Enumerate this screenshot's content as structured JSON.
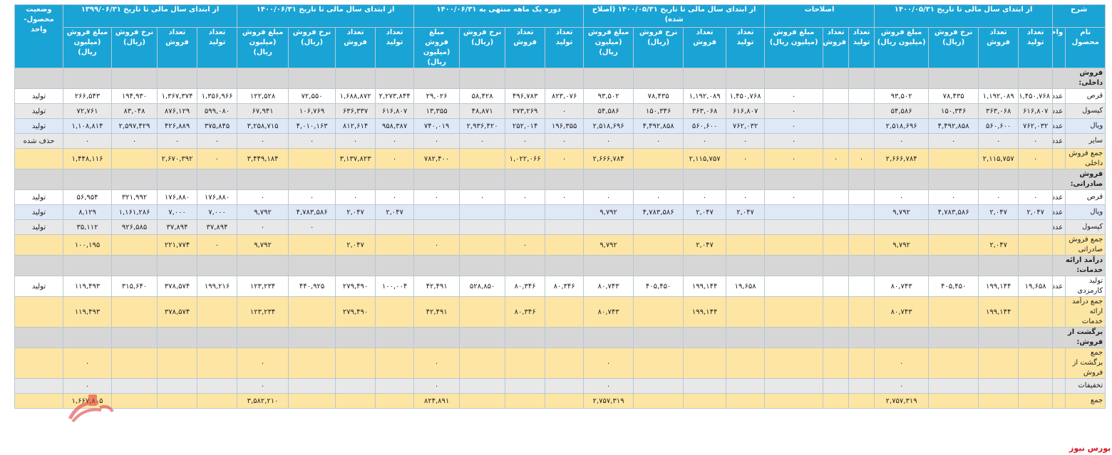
{
  "header": {
    "row1": [
      "شرح",
      "از ابتدای سال مالی تا تاریخ ۱۴۰۰/۰۵/۳۱",
      "اصلاحات",
      "از ابتدای سال مالی تا تاریخ ۱۴۰۰/۰۵/۳۱ (اصلاح شده)",
      "دوره یک ماهه منتهی به ۱۴۰۰/۰۶/۳۱",
      "از ابتدای سال مالی تا تاریخ ۱۴۰۰/۰۶/۳۱",
      "از ابتدای سال مالی تا تاریخ ۱۳۹۹/۰۶/۳۱",
      "وضعیت محصول- واحد"
    ],
    "row2": [
      "نام محصول",
      "واحد",
      "تعداد تولید",
      "تعداد فروش",
      "نرخ فروش (ریال)",
      "مبلغ فروش (میلیون ریال)",
      "تعداد تولید",
      "تعداد فروش",
      "مبلغ فروش (میلیون ریال)",
      "تعداد تولید",
      "تعداد فروش",
      "نرخ فروش (ریال)",
      "مبلغ فروش (میلیون ریال)",
      "تعداد تولید",
      "تعداد فروش",
      "نرخ فروش (ریال)",
      "مبلغ فروش (میلیون ریال)",
      "تعداد تولید",
      "تعداد فروش",
      "نرخ فروش (ریال)",
      "مبلغ فروش (میلیون ریال)",
      "تعداد تولید",
      "تعداد فروش",
      "نرخ فروش (ریال)",
      "مبلغ فروش (میلیون ریال)"
    ]
  },
  "rows": [
    {
      "type": "section",
      "label": "فروش داخلی:"
    },
    {
      "type": "data",
      "bg": "white",
      "label": "قرص",
      "unit": "عدد",
      "cells": [
        "۱,۴۵۰,۷۶۸",
        "۱,۱۹۲,۰۸۹",
        "۷۸,۴۳۵",
        "۹۳,۵۰۲",
        "",
        "",
        "۰",
        "۱,۴۵۰,۷۶۸",
        "۱,۱۹۲,۰۸۹",
        "۷۸,۴۳۵",
        "۹۳,۵۰۲",
        "۸۲۳,۰۷۶",
        "۴۹۶,۷۸۳",
        "۵۸,۴۲۸",
        "۲۹,۰۲۶",
        "۲,۲۷۳,۸۴۴",
        "۱,۶۸۸,۸۷۲",
        "۷۲,۵۵۰",
        "۱۲۲,۵۲۸",
        "۱,۳۵۶,۹۶۶",
        "۱,۳۶۷,۳۷۴",
        "۱۹۴,۹۳۰",
        "۲۶۶,۵۴۳"
      ],
      "status": "تولید"
    },
    {
      "type": "data",
      "bg": "gray",
      "label": "کپسول",
      "unit": "عدد",
      "cells": [
        "۶۱۶,۸۰۷",
        "۳۶۳,۰۶۸",
        "۱۵۰,۳۴۶",
        "۵۴,۵۸۶",
        "",
        "",
        "۰",
        "۶۱۶,۸۰۷",
        "۳۶۳,۰۶۸",
        "۱۵۰,۳۴۶",
        "۵۴,۵۸۶",
        "۰",
        "۲۷۳,۲۶۹",
        "۴۸,۸۷۱",
        "۱۳,۳۵۵",
        "۶۱۶,۸۰۷",
        "۶۳۶,۳۳۷",
        "۱۰۶,۷۶۹",
        "۶۷,۹۴۱",
        "۵۹۹,۰۸۰",
        "۸۷۶,۱۲۹",
        "۸۳,۰۴۸",
        "۷۲,۷۶۱"
      ],
      "status": "تولید"
    },
    {
      "type": "data",
      "bg": "blue",
      "label": "ویال",
      "unit": "عدد",
      "cells": [
        "۷۶۲,۰۳۲",
        "۵۶۰,۶۰۰",
        "۴,۴۹۲,۸۵۸",
        "۲,۵۱۸,۶۹۶",
        "",
        "",
        "۰",
        "۷۶۲,۰۳۲",
        "۵۶۰,۶۰۰",
        "۴,۴۹۲,۸۵۸",
        "۲,۵۱۸,۶۹۶",
        "۱۹۶,۳۵۵",
        "۲۵۲,۰۱۴",
        "۲,۹۳۶,۴۲۰",
        "۷۴۰,۰۱۹",
        "۹۵۸,۳۸۷",
        "۸۱۲,۶۱۴",
        "۴,۰۱۰,۱۶۳",
        "۳,۲۵۸,۷۱۵",
        "۳۷۵,۸۴۵",
        "۴۲۶,۸۸۹",
        "۲,۵۹۷,۴۲۹",
        "۱,۱۰۸,۸۱۴"
      ],
      "status": "تولید"
    },
    {
      "type": "data",
      "bg": "gray",
      "label": "سایر",
      "unit": "عدد",
      "cells": [
        "۰",
        "۰",
        "۰",
        "۰",
        "",
        "",
        "۰",
        "۰",
        "۰",
        "۰",
        "۰",
        "۰",
        "۰",
        "۰",
        "۰",
        "۰",
        "۰",
        "۰",
        "۰",
        "۰",
        "۰",
        "۰",
        "۰"
      ],
      "status": "حذف شده"
    },
    {
      "type": "total",
      "label": "جمع فروش داخلی",
      "unit": "",
      "cells": [
        "۰",
        "۲,۱۱۵,۷۵۷",
        "",
        "۲,۶۶۶,۷۸۴",
        "۰",
        "۰",
        "۰",
        "۰",
        "۲,۱۱۵,۷۵۷",
        "",
        "۲,۶۶۶,۷۸۴",
        "۰",
        "۱,۰۲۲,۰۶۶",
        "",
        "۷۸۲,۴۰۰",
        "۰",
        "۳,۱۳۷,۸۲۳",
        "",
        "۳,۴۴۹,۱۸۴",
        "۰",
        "۲,۶۷۰,۳۹۲",
        "",
        "۱,۴۴۸,۱۱۶"
      ],
      "status": ""
    },
    {
      "type": "section",
      "label": "فروش صادراتی:"
    },
    {
      "type": "data",
      "bg": "white",
      "label": "قرص",
      "unit": "عدد",
      "cells": [
        "۰",
        "۰",
        "۰",
        "۰",
        "",
        "",
        "۰",
        "۰",
        "۰",
        "۰",
        "۰",
        "۰",
        "۰",
        "۰",
        "۰",
        "۰",
        "۰",
        "۰",
        "۰",
        "۱۷۶,۸۸۰",
        "۱۷۶,۸۸۰",
        "۳۲۱,۹۹۲",
        "۵۶,۹۵۴"
      ],
      "status": "تولید"
    },
    {
      "type": "data",
      "bg": "blue",
      "label": "ویال",
      "unit": "عدد",
      "cells": [
        "۲,۰۴۷",
        "۲,۰۴۷",
        "۴,۷۸۳,۵۸۶",
        "۹,۷۹۲",
        "",
        "",
        "",
        "۲,۰۴۷",
        "۲,۰۴۷",
        "۴,۷۸۳,۵۸۶",
        "۹,۷۹۲",
        "",
        "",
        "",
        "",
        "۲,۰۴۷",
        "۲,۰۴۷",
        "۴,۷۸۳,۵۸۶",
        "۹,۷۹۲",
        "۷,۰۰۰",
        "۷,۰۰۰",
        "۱,۱۶۱,۲۸۶",
        "۸,۱۲۹"
      ],
      "status": "تولید"
    },
    {
      "type": "data",
      "bg": "gray",
      "label": "کپسول",
      "unit": "عدد",
      "cells": [
        "",
        "",
        "",
        "",
        "",
        "",
        "",
        "",
        "",
        "",
        "",
        "",
        "",
        "",
        "",
        "",
        "",
        "۰",
        "۰",
        "۳۷,۸۹۴",
        "۳۷,۸۹۴",
        "۹۲۶,۵۸۵",
        "۳۵,۱۱۲"
      ],
      "status": "تولید"
    },
    {
      "type": "total",
      "label": "جمع فروش صادراتی",
      "unit": "",
      "cells": [
        "",
        "۲,۰۴۷",
        "",
        "۹,۷۹۲",
        "",
        "",
        "",
        "",
        "۲,۰۴۷",
        "",
        "۹,۷۹۲",
        "",
        "۰",
        "",
        "۰",
        "",
        "۲,۰۴۷",
        "",
        "۹,۷۹۲",
        "۰",
        "۲۲۱,۷۷۴",
        "",
        "۱۰۰,۱۹۵"
      ],
      "status": ""
    },
    {
      "type": "section",
      "label": "درآمد ارائه خدمات:"
    },
    {
      "type": "data",
      "bg": "white",
      "tall": true,
      "label": "تولید کارمزدی",
      "unit": "عدد",
      "cells": [
        "۱۹,۶۵۸",
        "۱۹۹,۱۴۴",
        "۴۰۵,۴۵۰",
        "۸۰,۷۴۳",
        "",
        "",
        "",
        "۱۹,۶۵۸",
        "۱۹۹,۱۴۴",
        "۴۰۵,۴۵۰",
        "۸۰,۷۴۳",
        "۸۰,۳۴۶",
        "۸۰,۳۴۶",
        "۵۲۸,۸۵۰",
        "۴۲,۴۹۱",
        "۱۰۰,۰۰۴",
        "۲۷۹,۴۹۰",
        "۴۴۰,۹۲۵",
        "۱۲۳,۲۳۴",
        "۱۹۹,۲۱۶",
        "۳۷۸,۵۷۴",
        "۳۱۵,۶۴۰",
        "۱۱۹,۴۹۳"
      ],
      "status": "تولید"
    },
    {
      "type": "total",
      "label": "جمع درآمد ارائه خدمات",
      "unit": "",
      "cells": [
        "",
        "۱۹۹,۱۴۴",
        "",
        "۸۰,۷۴۳",
        "",
        "",
        "",
        "",
        "۱۹۹,۱۴۴",
        "",
        "۸۰,۷۴۳",
        "",
        "۸۰,۳۴۶",
        "",
        "۴۲,۴۹۱",
        "",
        "۲۷۹,۴۹۰",
        "",
        "۱۲۳,۲۳۴",
        "",
        "۳۷۸,۵۷۴",
        "",
        "۱۱۹,۴۹۳"
      ],
      "status": ""
    },
    {
      "type": "section",
      "label": "برگشت از فروش:"
    },
    {
      "type": "total",
      "label": "جمع برگشت از فروش",
      "unit": "",
      "cells": [
        "",
        "",
        "",
        "۰",
        "",
        "",
        "",
        "",
        "",
        "",
        "۰",
        "",
        "",
        "",
        "۰",
        "",
        "",
        "",
        "۰",
        "",
        "",
        "",
        "۰"
      ],
      "status": ""
    },
    {
      "type": "grey",
      "label": "تخفیفات",
      "unit": "",
      "cells": [
        "",
        "",
        "",
        "۰",
        "",
        "",
        "",
        "",
        "",
        "",
        "۰",
        "",
        "",
        "",
        "۰",
        "",
        "",
        "",
        "۰",
        "",
        "",
        "",
        "۰"
      ],
      "status": ""
    },
    {
      "type": "total",
      "label": "جمع",
      "unit": "",
      "cells": [
        "",
        "",
        "",
        "۲,۷۵۷,۳۱۹",
        "",
        "",
        "",
        "",
        "",
        "",
        "۲,۷۵۷,۳۱۹",
        "",
        "",
        "",
        "۸۲۴,۸۹۱",
        "",
        "",
        "",
        "۳,۵۸۲,۲۱۰",
        "",
        "",
        "",
        "۱,۶۶۷,۸۰۵"
      ],
      "status": ""
    }
  ],
  "brand": {
    "text": "بورس نیوز",
    "color": "#d8131f"
  },
  "colors": {
    "header": "#1aa4d6",
    "total": "#fde6a3",
    "section": "#d6d6d6",
    "blue": "#dfe8f7",
    "gray": "#e8e8e8"
  }
}
